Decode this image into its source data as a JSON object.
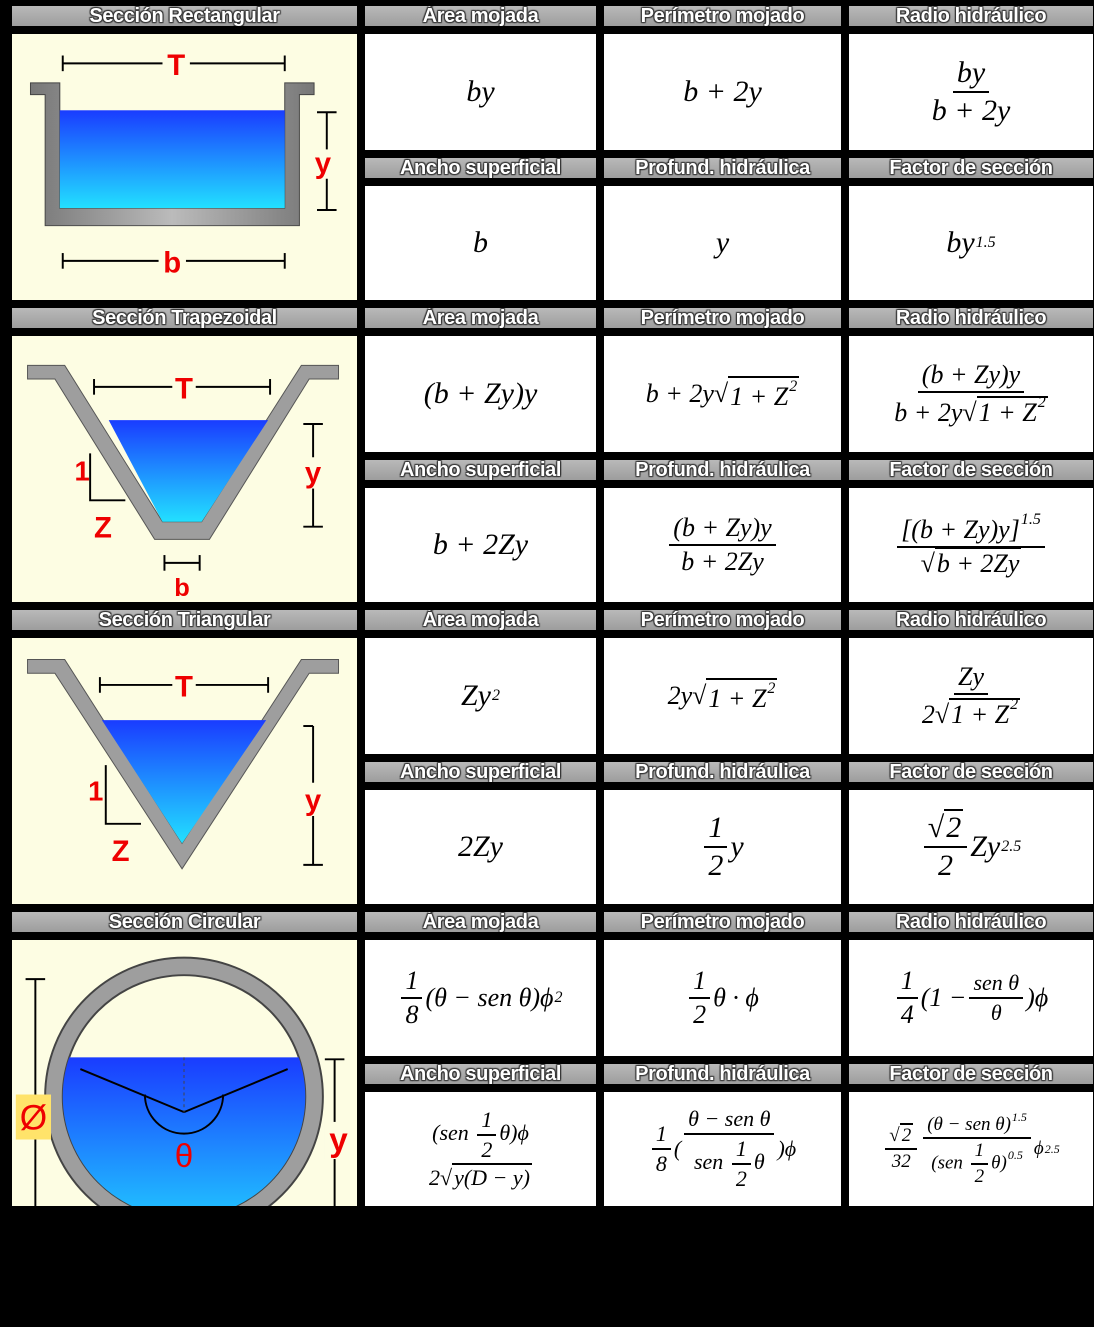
{
  "headers": {
    "area": "Área mojada",
    "perimetro": "Perímetro mojado",
    "radio": "Radio hidráulico",
    "ancho": "Ancho superficial",
    "profund": "Profund. hidráulica",
    "factor": "Factor de sección"
  },
  "sections": [
    {
      "title": "Sección Rectangular",
      "labels": {
        "T": "T",
        "y": "y",
        "b": "b"
      },
      "area": "by",
      "perimetro": "b + 2y",
      "radio_num": "by",
      "radio_den": "b + 2y",
      "ancho": "b",
      "profund": "y",
      "factor_base": "by",
      "factor_exp": "1.5"
    },
    {
      "title": "Sección Trapezoidal",
      "labels": {
        "T": "T",
        "y": "y",
        "b": "b",
        "one": "1",
        "Z": "Z"
      },
      "area": "(b + Zy)y",
      "perimetro_a": "b + 2y",
      "perimetro_rad": "1 + Z",
      "radio_num": "(b + Zy)y",
      "radio_den_a": "b + 2y",
      "radio_den_rad": "1 + Z",
      "ancho": "b + 2Zy",
      "profund_num": "(b + Zy)y",
      "profund_den": "b + 2Zy",
      "factor_num": "[(b + Zy)y]",
      "factor_exp": "1.5",
      "factor_den": "b + 2Zy"
    },
    {
      "title": "Sección Triangular",
      "labels": {
        "T": "T",
        "y": "y",
        "one": "1",
        "Z": "Z"
      },
      "area": "Zy",
      "perimetro_a": "2y",
      "perimetro_rad": "1 + Z",
      "radio_num": "Zy",
      "radio_den_a": "2",
      "radio_den_rad": "1 + Z",
      "ancho": "2Zy",
      "profund_num": "1",
      "profund_den": "2",
      "profund_var": "y",
      "factor_num": "2",
      "factor_den": "2",
      "factor_tail": "Zy",
      "factor_exp": "2.5"
    },
    {
      "title": "Sección Circular",
      "labels": {
        "diam": "Ø",
        "y": "y",
        "theta": "θ"
      },
      "area_num": "1",
      "area_den": "8",
      "area_body": "(θ − sen θ)ϕ",
      "perimetro_num": "1",
      "perimetro_den": "2",
      "perimetro_body": "θ · ϕ",
      "radio_num": "1",
      "radio_den": "4",
      "radio_inner_num": "sen θ",
      "radio_inner_den": "θ",
      "radio_tail": "ϕ",
      "ancho_top": "sen",
      "ancho_rad": "y(D − y)",
      "profund_num": "1",
      "profund_den": "8",
      "profund_inner_num": "θ − sen θ",
      "profund_inner_den": "sen",
      "factor_num": "2",
      "factor_den": "32",
      "factor_inner_num": "(θ − sen θ)",
      "factor_inner_den": "sen",
      "factor_exp_a": "1.5",
      "factor_exp_b": "0.5",
      "factor_exp_c": "2.5"
    }
  ]
}
